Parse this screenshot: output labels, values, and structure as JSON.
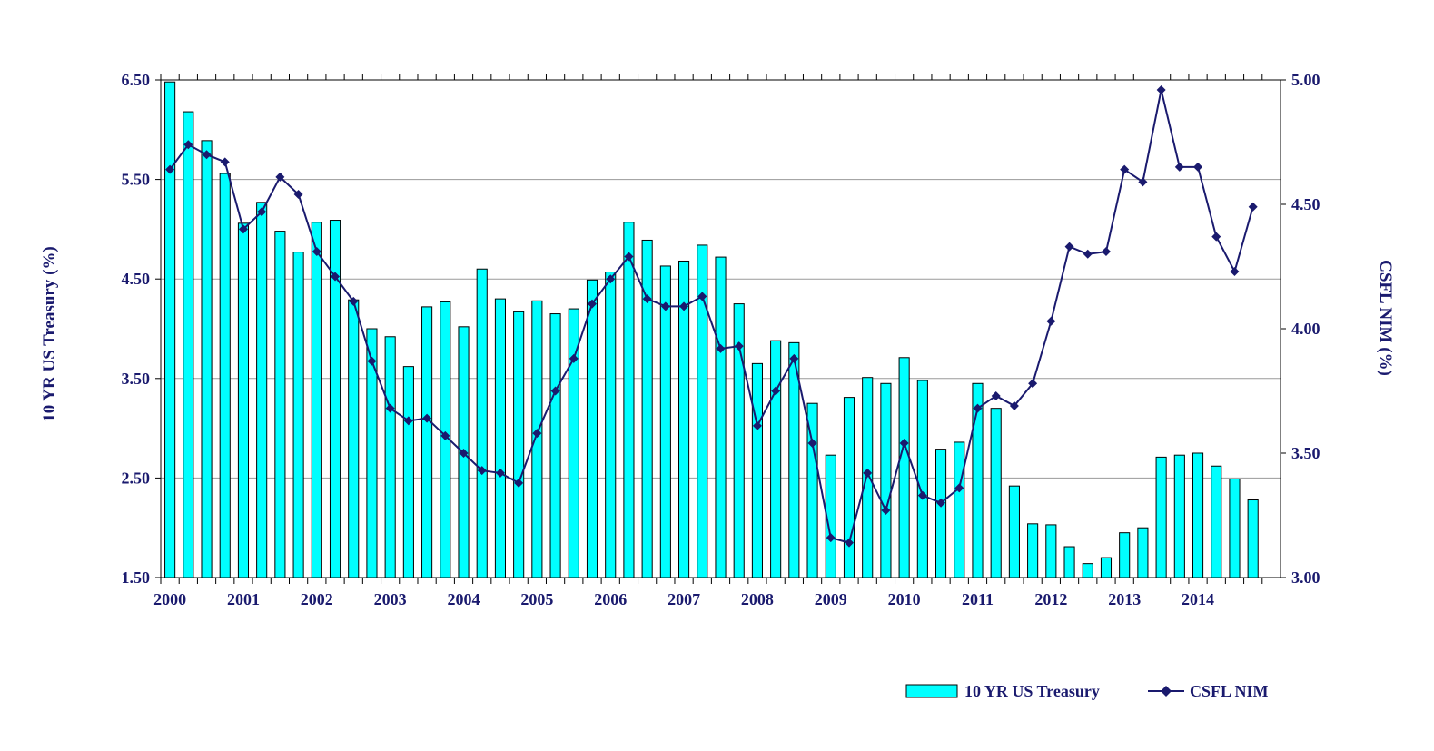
{
  "chart_data": {
    "type": "bar+line",
    "title": "",
    "xlabel": "",
    "ylabel_left": "10 YR US Treasury (%)",
    "ylabel_right": "CSFL NIM (%)",
    "ylim_left": [
      1.5,
      6.5
    ],
    "ylim_right": [
      3.0,
      5.0
    ],
    "yticks_left": [
      "1.50",
      "2.50",
      "3.50",
      "4.50",
      "5.50",
      "6.50"
    ],
    "yticks_right": [
      "3.00",
      "3.50",
      "4.00",
      "4.50",
      "5.00"
    ],
    "year_labels": [
      "2000",
      "2001",
      "2002",
      "2003",
      "2004",
      "2005",
      "2006",
      "2007",
      "2008",
      "2009",
      "2010",
      "2011",
      "2012",
      "2013",
      "2014"
    ],
    "periods_per_year": 4,
    "grid": "horizontal",
    "legend_position": "bottom-right",
    "colors": {
      "bar": "#00ffff",
      "line": "#1a1a6e",
      "text": "#1a1a6e",
      "grid": "#999999"
    },
    "series": [
      {
        "name": "10 YR US Treasury",
        "type": "bar",
        "axis": "left",
        "values": [
          6.48,
          6.18,
          5.89,
          5.56,
          5.06,
          5.27,
          4.98,
          4.77,
          5.07,
          5.09,
          4.29,
          4.0,
          3.92,
          3.62,
          4.22,
          4.27,
          4.02,
          4.6,
          4.3,
          4.17,
          4.28,
          4.15,
          4.2,
          4.49,
          4.57,
          5.07,
          4.89,
          4.63,
          4.68,
          4.84,
          4.72,
          4.25,
          3.65,
          3.88,
          3.86,
          3.25,
          2.73,
          3.31,
          3.51,
          3.45,
          3.71,
          3.48,
          2.79,
          2.86,
          3.45,
          3.2,
          2.42,
          2.04,
          2.03,
          1.81,
          1.64,
          1.7,
          1.95,
          2.0,
          2.71,
          2.73,
          2.75,
          2.62,
          2.49,
          2.28
        ]
      },
      {
        "name": "CSFL NIM",
        "type": "line",
        "axis": "right",
        "marker": "diamond",
        "values": [
          4.64,
          4.74,
          4.7,
          4.67,
          4.4,
          4.47,
          4.61,
          4.54,
          4.31,
          4.21,
          4.11,
          3.87,
          3.68,
          3.63,
          3.64,
          3.57,
          3.5,
          3.43,
          3.42,
          3.38,
          3.58,
          3.75,
          3.88,
          4.1,
          4.2,
          4.29,
          4.12,
          4.09,
          4.09,
          4.13,
          3.92,
          3.93,
          3.61,
          3.75,
          3.88,
          3.54,
          3.16,
          3.14,
          3.42,
          3.27,
          3.54,
          3.33,
          3.3,
          3.36,
          3.68,
          3.73,
          3.69,
          3.78,
          4.03,
          4.33,
          4.3,
          4.31,
          4.64,
          4.59,
          4.96,
          4.65,
          4.65,
          4.37,
          4.23,
          4.49
        ]
      }
    ]
  }
}
